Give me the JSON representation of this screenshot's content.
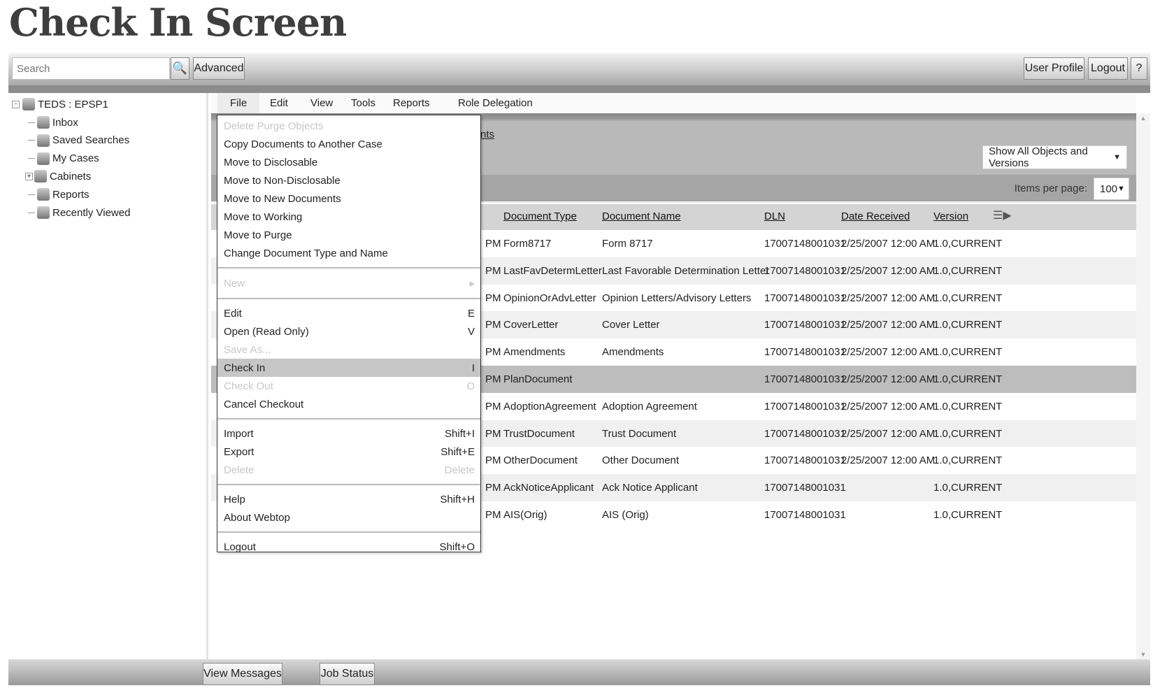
{
  "page_title": "Check In Screen",
  "topbar": {
    "search_placeholder": "Search",
    "advanced": "Advanced",
    "user_profile": "User Profile",
    "logout": "Logout",
    "help": "?"
  },
  "tree": {
    "root": "TEDS : EPSP1",
    "items": [
      {
        "label": "Inbox",
        "icon": "inbox-icon"
      },
      {
        "label": "Saved Searches",
        "icon": "magnifier-icon"
      },
      {
        "label": "My Cases",
        "icon": "cases-icon"
      },
      {
        "label": "Cabinets",
        "icon": "cabinet-icon"
      },
      {
        "label": "Reports",
        "icon": "report-icon"
      },
      {
        "label": "Recently Viewed",
        "icon": "star-icon"
      }
    ]
  },
  "menubar": [
    "File",
    "Edit",
    "View",
    "Tools",
    "Reports",
    "Role Delegation"
  ],
  "breadcrumb_fragment": "nts",
  "filter_select": "Show All Objects and Versions",
  "items_per_page_label": "Items per page:",
  "items_per_page": "100",
  "columns": [
    "Document Type",
    "Document Name",
    "DLN",
    "Date Received",
    "Version"
  ],
  "rows": [
    {
      "prefix": "PM",
      "type": "Form8717",
      "name": "Form 8717",
      "dln": "17007148001031",
      "date": "2/25/2007 12:00 AM",
      "version": "1.0,CURRENT"
    },
    {
      "prefix": "PM",
      "type": "LastFavDetermLetter",
      "name": "Last Favorable Determination Letter",
      "dln": "17007148001031",
      "date": "2/25/2007 12:00 AM",
      "version": "1.0,CURRENT"
    },
    {
      "prefix": "PM",
      "type": "OpinionOrAdvLetter",
      "name": "Opinion Letters/Advisory Letters",
      "dln": "17007148001031",
      "date": "2/25/2007 12:00 AM",
      "version": "1.0,CURRENT"
    },
    {
      "prefix": "PM",
      "type": "CoverLetter",
      "name": "Cover Letter",
      "dln": "17007148001031",
      "date": "2/25/2007 12:00 AM",
      "version": "1.0,CURRENT"
    },
    {
      "prefix": "PM",
      "type": "Amendments",
      "name": "Amendments",
      "dln": "17007148001031",
      "date": "2/25/2007 12:00 AM",
      "version": "1.0,CURRENT"
    },
    {
      "prefix": "PM",
      "type": "PlanDocument",
      "name": "",
      "dln": "17007148001031",
      "date": "2/25/2007 12:00 AM",
      "version": "1.0,CURRENT",
      "selected": true
    },
    {
      "prefix": "PM",
      "type": "AdoptionAgreement",
      "name": "Adoption Agreement",
      "dln": "17007148001031",
      "date": "2/25/2007 12:00 AM",
      "version": "1.0,CURRENT"
    },
    {
      "prefix": "PM",
      "type": "TrustDocument",
      "name": "Trust Document",
      "dln": "17007148001031",
      "date": "2/25/2007 12:00 AM",
      "version": "1.0,CURRENT"
    },
    {
      "prefix": "PM",
      "type": "OtherDocument",
      "name": "Other Document",
      "dln": "17007148001031",
      "date": "2/25/2007 12:00 AM",
      "version": "1.0,CURRENT"
    },
    {
      "prefix": "PM",
      "type": "AckNoticeApplicant",
      "name": "Ack Notice Applicant",
      "dln": "17007148001031",
      "date": "",
      "version": "1.0,CURRENT"
    },
    {
      "prefix": "PM",
      "type": "AIS(Orig)",
      "name": "AIS (Orig)",
      "dln": "17007148001031",
      "date": "",
      "version": "1.0,CURRENT"
    }
  ],
  "file_menu": [
    [
      {
        "label": "Delete Purge Objects",
        "disabled": true
      },
      {
        "label": "Copy Documents to Another Case"
      },
      {
        "label": "Move to Disclosable"
      },
      {
        "label": "Move to Non-Disclosable"
      },
      {
        "label": "Move to New Documents"
      },
      {
        "label": "Move to Working"
      },
      {
        "label": "Move to Purge"
      },
      {
        "label": "Change Document Type and Name"
      }
    ],
    [
      {
        "label": "New",
        "disabled": true,
        "submenu": "▸"
      }
    ],
    [
      {
        "label": "Edit",
        "shortcut": "E"
      },
      {
        "label": "Open (Read Only)",
        "shortcut": "V"
      },
      {
        "label": "Save As...",
        "disabled": true
      },
      {
        "label": "Check In",
        "shortcut": "I",
        "highlighted": true
      },
      {
        "label": "Check Out",
        "shortcut": "O",
        "disabled": true
      },
      {
        "label": "Cancel Checkout"
      }
    ],
    [
      {
        "label": "Import",
        "shortcut": "Shift+I"
      },
      {
        "label": "Export",
        "shortcut": "Shift+E"
      },
      {
        "label": "Delete",
        "shortcut": "Delete",
        "disabled": true
      }
    ],
    [
      {
        "label": "Help",
        "shortcut": "Shift+H"
      },
      {
        "label": "About Webtop"
      }
    ],
    [
      {
        "label": "Logout",
        "shortcut": "Shift+O"
      }
    ]
  ],
  "bottombar": {
    "view_messages": "View Messages",
    "job_status": "Job Status"
  },
  "colors": {
    "selected_row": "#bdbdbd",
    "menu_highlight": "#c6c6c6"
  }
}
